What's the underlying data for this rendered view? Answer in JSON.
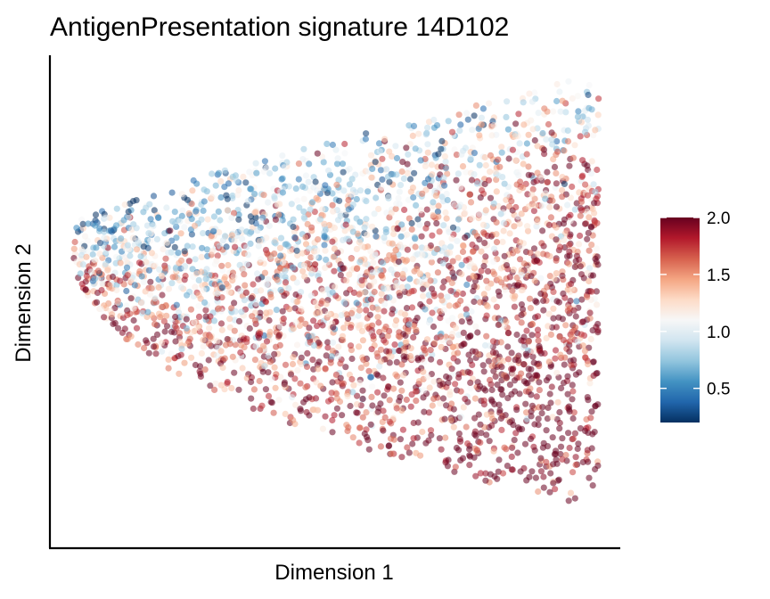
{
  "chart_data": {
    "type": "scatter",
    "title": "AntigenPresentation signature 14D102",
    "xlabel": "Dimension 1",
    "ylabel": "Dimension 2",
    "x_ticks": [],
    "y_ticks": [],
    "grid": false,
    "point_alpha": 0.55,
    "n_points": 3200,
    "seed": 14102,
    "region_hint": "point cloud fan shape: narrow tip on left, widening to the right; upper band mostly blue (low values), lower and right areas mostly red (high values)",
    "legend": {
      "type": "colorbar",
      "placement": "right",
      "range": [
        0.2,
        2.0
      ],
      "ticks": [
        0.5,
        1.0,
        1.5,
        2.0
      ],
      "tick_labels": [
        "0.5",
        "1.0",
        "1.5",
        "2.0"
      ],
      "colorscale": [
        [
          0.0,
          "#053061"
        ],
        [
          0.1,
          "#2166ac"
        ],
        [
          0.2,
          "#4393c3"
        ],
        [
          0.3,
          "#92c5de"
        ],
        [
          0.4,
          "#d1e5f0"
        ],
        [
          0.5,
          "#f7f7f7"
        ],
        [
          0.6,
          "#fddbc7"
        ],
        [
          0.7,
          "#f4a582"
        ],
        [
          0.8,
          "#d6604d"
        ],
        [
          0.9,
          "#b2182b"
        ],
        [
          1.0,
          "#67001f"
        ]
      ]
    }
  }
}
